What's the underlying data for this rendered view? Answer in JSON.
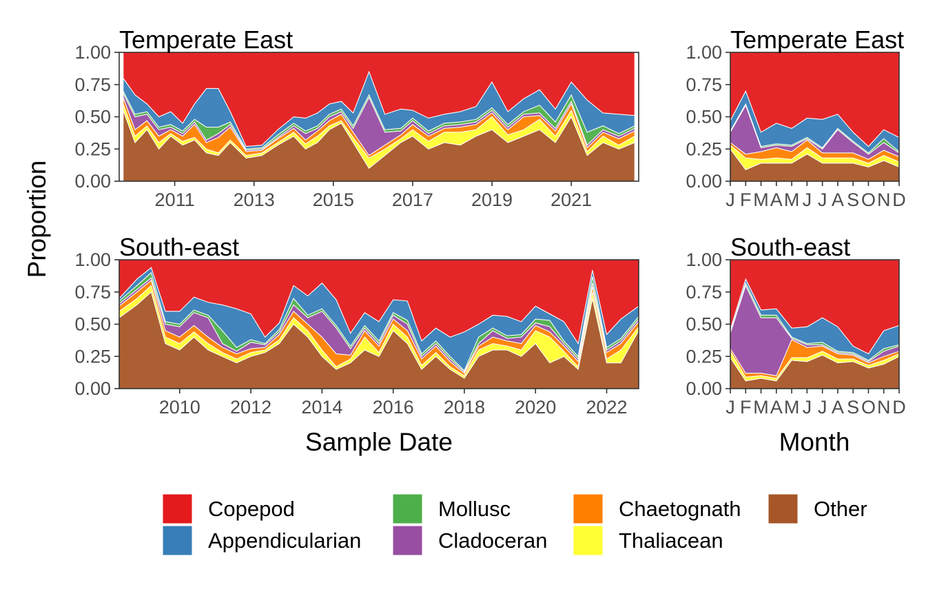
{
  "labels": {
    "y_axis_title": "Proportion",
    "x_axis_title_left": "Sample Date",
    "x_axis_title_right": "Month"
  },
  "colors": {
    "Copepod": "#e41a1c",
    "Appendicularian": "#377eb8",
    "Mollusc": "#4daf4a",
    "Cladoceran": "#984ea3",
    "Chaetognath": "#ff7f00",
    "Thaliacean": "#ffff33",
    "Other": "#a65628"
  },
  "legend": [
    {
      "name": "Copepod",
      "color": "#e41a1c"
    },
    {
      "name": "Appendicularian",
      "color": "#377eb8"
    },
    {
      "name": "Mollusc",
      "color": "#4daf4a"
    },
    {
      "name": "Cladoceran",
      "color": "#984ea3"
    },
    {
      "name": "Chaetognath",
      "color": "#ff7f00"
    },
    {
      "name": "Thaliacean",
      "color": "#ffff33"
    },
    {
      "name": "Other",
      "color": "#a65628"
    }
  ],
  "chart_data": [
    {
      "type": "area",
      "panel": "time-temperate-east",
      "title": "Temperate East",
      "xlim": [
        2009.6,
        2022.7
      ],
      "x_ticks": [
        2011,
        2013,
        2015,
        2017,
        2019,
        2021
      ],
      "ylim": [
        0,
        1
      ],
      "y_ticks": [
        "0.00",
        "0.25",
        "0.50",
        "0.75",
        "1.00"
      ],
      "x": [
        2009.7,
        2010.0,
        2010.3,
        2010.6,
        2010.9,
        2011.2,
        2011.5,
        2011.8,
        2012.1,
        2012.4,
        2012.8,
        2013.2,
        2013.6,
        2014.0,
        2014.3,
        2014.6,
        2014.9,
        2015.2,
        2015.5,
        2015.9,
        2016.3,
        2016.7,
        2017.0,
        2017.4,
        2017.8,
        2018.2,
        2018.6,
        2019.0,
        2019.4,
        2019.8,
        2020.2,
        2020.6,
        2021.0,
        2021.4,
        2021.8,
        2022.2,
        2022.6
      ],
      "series": [
        {
          "name": "Other",
          "values": [
            0.55,
            0.3,
            0.4,
            0.25,
            0.35,
            0.28,
            0.32,
            0.22,
            0.2,
            0.3,
            0.18,
            0.2,
            0.28,
            0.35,
            0.25,
            0.3,
            0.4,
            0.45,
            0.3,
            0.1,
            0.2,
            0.3,
            0.35,
            0.25,
            0.3,
            0.28,
            0.35,
            0.4,
            0.3,
            0.35,
            0.4,
            0.3,
            0.5,
            0.2,
            0.3,
            0.25,
            0.3
          ]
        },
        {
          "name": "Thaliacean",
          "values": [
            0.05,
            0.05,
            0.03,
            0.05,
            0.02,
            0.03,
            0.02,
            0.03,
            0.02,
            0.02,
            0.02,
            0.02,
            0.02,
            0.03,
            0.04,
            0.05,
            0.03,
            0.02,
            0.04,
            0.08,
            0.05,
            0.03,
            0.05,
            0.06,
            0.08,
            0.1,
            0.05,
            0.1,
            0.06,
            0.05,
            0.08,
            0.05,
            0.05,
            0.03,
            0.05,
            0.03,
            0.05
          ]
        },
        {
          "name": "Chaetognath",
          "values": [
            0.05,
            0.05,
            0.04,
            0.05,
            0.03,
            0.04,
            0.1,
            0.05,
            0.12,
            0.1,
            0.03,
            0.02,
            0.03,
            0.03,
            0.03,
            0.04,
            0.04,
            0.05,
            0.04,
            0.02,
            0.03,
            0.03,
            0.04,
            0.04,
            0.03,
            0.04,
            0.04,
            0.03,
            0.04,
            0.1,
            0.03,
            0.04,
            0.05,
            0.03,
            0.03,
            0.05,
            0.04
          ]
        },
        {
          "name": "Cladoceran",
          "values": [
            0.03,
            0.1,
            0.05,
            0.05,
            0.02,
            0.02,
            0.02,
            0.02,
            0.03,
            0.02,
            0.01,
            0.01,
            0.01,
            0.02,
            0.05,
            0.02,
            0.03,
            0.02,
            0.03,
            0.45,
            0.1,
            0.03,
            0.03,
            0.02,
            0.02,
            0.02,
            0.02,
            0.02,
            0.02,
            0.02,
            0.02,
            0.02,
            0.02,
            0.02,
            0.02,
            0.02,
            0.02
          ]
        },
        {
          "name": "Mollusc",
          "values": [
            0.02,
            0.02,
            0.02,
            0.02,
            0.02,
            0.02,
            0.02,
            0.1,
            0.05,
            0.02,
            0.01,
            0.01,
            0.02,
            0.02,
            0.02,
            0.02,
            0.02,
            0.02,
            0.02,
            0.02,
            0.02,
            0.02,
            0.02,
            0.02,
            0.02,
            0.02,
            0.02,
            0.02,
            0.02,
            0.02,
            0.06,
            0.05,
            0.05,
            0.1,
            0.03,
            0.02,
            0.02
          ]
        },
        {
          "name": "Appendicularian",
          "values": [
            0.1,
            0.15,
            0.06,
            0.08,
            0.1,
            0.06,
            0.12,
            0.3,
            0.3,
            0.08,
            0.02,
            0.02,
            0.04,
            0.05,
            0.1,
            0.1,
            0.08,
            0.06,
            0.1,
            0.18,
            0.12,
            0.15,
            0.06,
            0.1,
            0.07,
            0.08,
            0.1,
            0.2,
            0.1,
            0.1,
            0.12,
            0.1,
            0.1,
            0.25,
            0.1,
            0.15,
            0.08
          ]
        },
        {
          "name": "Copepod",
          "values": [
            0.2,
            0.33,
            0.4,
            0.5,
            0.46,
            0.55,
            0.4,
            0.28,
            0.28,
            0.46,
            0.73,
            0.72,
            0.6,
            0.5,
            0.51,
            0.47,
            0.4,
            0.38,
            0.47,
            0.15,
            0.48,
            0.44,
            0.45,
            0.51,
            0.48,
            0.46,
            0.42,
            0.23,
            0.46,
            0.36,
            0.29,
            0.44,
            0.23,
            0.37,
            0.47,
            0.48,
            0.49
          ]
        }
      ]
    },
    {
      "type": "area",
      "panel": "month-temperate-east",
      "title": "Temperate East",
      "x": [
        1,
        2,
        3,
        4,
        5,
        6,
        7,
        8,
        9,
        10,
        11,
        12
      ],
      "x_ticks": [
        "J",
        "F",
        "M",
        "A",
        "M",
        "J",
        "J",
        "A",
        "S",
        "O",
        "N",
        "D"
      ],
      "ylim": [
        0,
        1
      ],
      "y_ticks": [
        "0.00",
        "0.25",
        "0.50",
        "0.75",
        "1.00"
      ],
      "series": [
        {
          "name": "Other",
          "values": [
            0.25,
            0.09,
            0.14,
            0.14,
            0.14,
            0.21,
            0.14,
            0.14,
            0.14,
            0.11,
            0.16,
            0.11
          ]
        },
        {
          "name": "Thaliacean",
          "values": [
            0.03,
            0.09,
            0.03,
            0.04,
            0.03,
            0.05,
            0.04,
            0.04,
            0.04,
            0.03,
            0.04,
            0.04
          ]
        },
        {
          "name": "Chaetognath",
          "values": [
            0.02,
            0.03,
            0.06,
            0.08,
            0.06,
            0.06,
            0.04,
            0.04,
            0.04,
            0.03,
            0.04,
            0.04
          ]
        },
        {
          "name": "Cladoceran",
          "values": [
            0.08,
            0.38,
            0.03,
            0.02,
            0.04,
            0.01,
            0.03,
            0.18,
            0.08,
            0.04,
            0.06,
            0.03
          ]
        },
        {
          "name": "Mollusc",
          "values": [
            0.01,
            0.01,
            0.01,
            0.01,
            0.01,
            0.01,
            0.01,
            0.01,
            0.01,
            0.01,
            0.03,
            0.01
          ]
        },
        {
          "name": "Appendicularian",
          "values": [
            0.08,
            0.1,
            0.11,
            0.16,
            0.13,
            0.15,
            0.22,
            0.11,
            0.07,
            0.05,
            0.07,
            0.11
          ]
        },
        {
          "name": "Copepod",
          "values": [
            0.53,
            0.3,
            0.62,
            0.55,
            0.59,
            0.51,
            0.52,
            0.48,
            0.62,
            0.73,
            0.6,
            0.66
          ]
        }
      ]
    },
    {
      "type": "area",
      "panel": "time-south-east",
      "title": "South-east",
      "xlim": [
        2008.3,
        2022.9
      ],
      "x_ticks": [
        2010,
        2012,
        2014,
        2016,
        2018,
        2020,
        2022
      ],
      "ylim": [
        0,
        1
      ],
      "y_ticks": [
        "0.00",
        "0.25",
        "0.50",
        "0.75",
        "1.00"
      ],
      "x": [
        2008.3,
        2008.8,
        2009.2,
        2009.6,
        2010.0,
        2010.4,
        2010.8,
        2011.2,
        2011.6,
        2012.0,
        2012.4,
        2012.8,
        2013.2,
        2013.6,
        2014.0,
        2014.4,
        2014.8,
        2015.2,
        2015.6,
        2016.0,
        2016.4,
        2016.8,
        2017.2,
        2017.6,
        2018.0,
        2018.4,
        2018.8,
        2019.2,
        2019.6,
        2020.0,
        2020.4,
        2020.8,
        2021.2,
        2021.6,
        2022.0,
        2022.4,
        2022.9
      ],
      "series": [
        {
          "name": "Other",
          "values": [
            0.55,
            0.65,
            0.75,
            0.35,
            0.3,
            0.4,
            0.3,
            0.25,
            0.2,
            0.25,
            0.28,
            0.35,
            0.5,
            0.4,
            0.25,
            0.15,
            0.2,
            0.3,
            0.25,
            0.45,
            0.35,
            0.15,
            0.25,
            0.15,
            0.08,
            0.25,
            0.3,
            0.3,
            0.25,
            0.35,
            0.2,
            0.25,
            0.15,
            0.7,
            0.2,
            0.2,
            0.45
          ]
        },
        {
          "name": "Thaliacean",
          "values": [
            0.05,
            0.05,
            0.05,
            0.05,
            0.05,
            0.04,
            0.05,
            0.03,
            0.03,
            0.03,
            0.02,
            0.03,
            0.05,
            0.05,
            0.05,
            0.02,
            0.03,
            0.1,
            0.03,
            0.05,
            0.05,
            0.03,
            0.03,
            0.02,
            0.02,
            0.05,
            0.05,
            0.03,
            0.05,
            0.1,
            0.2,
            0.04,
            0.02,
            0.05,
            0.03,
            0.1,
            0.03
          ]
        },
        {
          "name": "Chaetognath",
          "values": [
            0.04,
            0.05,
            0.04,
            0.05,
            0.05,
            0.05,
            0.05,
            0.04,
            0.04,
            0.03,
            0.02,
            0.04,
            0.05,
            0.05,
            0.1,
            0.1,
            0.03,
            0.05,
            0.05,
            0.04,
            0.05,
            0.05,
            0.05,
            0.04,
            0.02,
            0.03,
            0.05,
            0.04,
            0.05,
            0.04,
            0.04,
            0.04,
            0.04,
            0.04,
            0.05,
            0.05,
            0.04
          ]
        },
        {
          "name": "Cladoceran",
          "values": [
            0.02,
            0.02,
            0.02,
            0.05,
            0.08,
            0.1,
            0.15,
            0.03,
            0.02,
            0.05,
            0.02,
            0.02,
            0.05,
            0.05,
            0.2,
            0.2,
            0.05,
            0.02,
            0.02,
            0.03,
            0.05,
            0.02,
            0.02,
            0.02,
            0.01,
            0.02,
            0.05,
            0.02,
            0.05,
            0.02,
            0.04,
            0.02,
            0.02,
            0.03,
            0.02,
            0.02,
            0.02
          ]
        },
        {
          "name": "Mollusc",
          "values": [
            0.02,
            0.03,
            0.04,
            0.02,
            0.02,
            0.02,
            0.02,
            0.1,
            0.03,
            0.02,
            0.01,
            0.02,
            0.05,
            0.02,
            0.02,
            0.02,
            0.02,
            0.02,
            0.02,
            0.02,
            0.03,
            0.02,
            0.02,
            0.02,
            0.01,
            0.05,
            0.02,
            0.02,
            0.02,
            0.03,
            0.05,
            0.02,
            0.02,
            0.05,
            0.02,
            0.02,
            0.02
          ]
        },
        {
          "name": "Appendicularian",
          "values": [
            0.02,
            0.05,
            0.04,
            0.08,
            0.1,
            0.1,
            0.1,
            0.2,
            0.3,
            0.2,
            0.05,
            0.05,
            0.1,
            0.15,
            0.2,
            0.2,
            0.1,
            0.1,
            0.15,
            0.1,
            0.15,
            0.1,
            0.1,
            0.15,
            0.3,
            0.1,
            0.1,
            0.15,
            0.1,
            0.1,
            0.05,
            0.15,
            0.1,
            0.05,
            0.1,
            0.15,
            0.08
          ]
        },
        {
          "name": "Copepod",
          "values": [
            0.3,
            0.15,
            0.06,
            0.4,
            0.4,
            0.29,
            0.33,
            0.35,
            0.38,
            0.42,
            0.6,
            0.49,
            0.2,
            0.28,
            0.18,
            0.31,
            0.57,
            0.41,
            0.48,
            0.31,
            0.32,
            0.63,
            0.53,
            0.6,
            0.56,
            0.5,
            0.43,
            0.44,
            0.48,
            0.36,
            0.42,
            0.48,
            0.65,
            0.08,
            0.58,
            0.46,
            0.36
          ]
        }
      ]
    },
    {
      "type": "area",
      "panel": "month-south-east",
      "title": "South-east",
      "x": [
        1,
        2,
        3,
        4,
        5,
        6,
        7,
        8,
        9,
        10,
        11,
        12
      ],
      "x_ticks": [
        "J",
        "F",
        "M",
        "A",
        "M",
        "J",
        "J",
        "A",
        "S",
        "O",
        "N",
        "D"
      ],
      "ylim": [
        0,
        1
      ],
      "y_ticks": [
        "0.00",
        "0.25",
        "0.50",
        "0.75",
        "1.00"
      ],
      "series": [
        {
          "name": "Other",
          "values": [
            0.24,
            0.06,
            0.08,
            0.06,
            0.22,
            0.21,
            0.26,
            0.2,
            0.21,
            0.16,
            0.19,
            0.25
          ]
        },
        {
          "name": "Thaliacean",
          "values": [
            0.05,
            0.03,
            0.02,
            0.02,
            0.02,
            0.03,
            0.03,
            0.03,
            0.02,
            0.02,
            0.03,
            0.02
          ]
        },
        {
          "name": "Chaetognath",
          "values": [
            0.02,
            0.03,
            0.02,
            0.02,
            0.14,
            0.08,
            0.04,
            0.04,
            0.03,
            0.02,
            0.03,
            0.02
          ]
        },
        {
          "name": "Cladoceran",
          "values": [
            0.12,
            0.68,
            0.43,
            0.45,
            0.01,
            0.02,
            0.01,
            0.01,
            0.01,
            0.01,
            0.04,
            0.04
          ]
        },
        {
          "name": "Mollusc",
          "values": [
            0.01,
            0.02,
            0.02,
            0.02,
            0.01,
            0.01,
            0.02,
            0.01,
            0.01,
            0.01,
            0.02,
            0.01
          ]
        },
        {
          "name": "Appendicularian",
          "values": [
            0.02,
            0.03,
            0.04,
            0.05,
            0.07,
            0.13,
            0.19,
            0.19,
            0.05,
            0.05,
            0.14,
            0.15
          ]
        },
        {
          "name": "Copepod",
          "values": [
            0.54,
            0.15,
            0.39,
            0.38,
            0.53,
            0.52,
            0.45,
            0.52,
            0.67,
            0.73,
            0.55,
            0.51
          ]
        }
      ]
    }
  ]
}
